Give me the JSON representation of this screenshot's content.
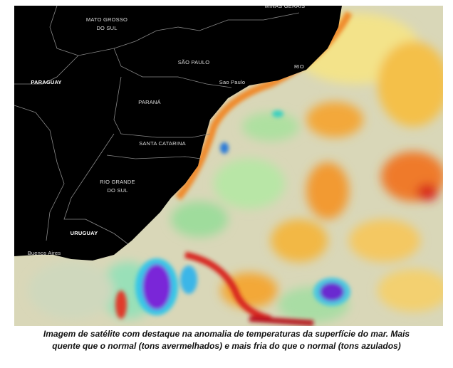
{
  "map": {
    "labels": [
      "MINAS GERAIS",
      "MATO GROSSO",
      "DO SUL",
      "SÃO PAULO",
      "Sao Paulo",
      "RIO",
      "PARAGUAY",
      "PARANÁ",
      "SANTA CATARINA",
      "RIO GRANDE",
      "DO SUL",
      "URUGUAY",
      "Buenos Aires"
    ]
  },
  "caption": [
    "Imagem de satélite com destaque na anomalia de temperaturas  da superfície do mar. Mais",
    "quente que o normal (tons avermelhados) e mais fria do que o normal (tons azulados)"
  ]
}
